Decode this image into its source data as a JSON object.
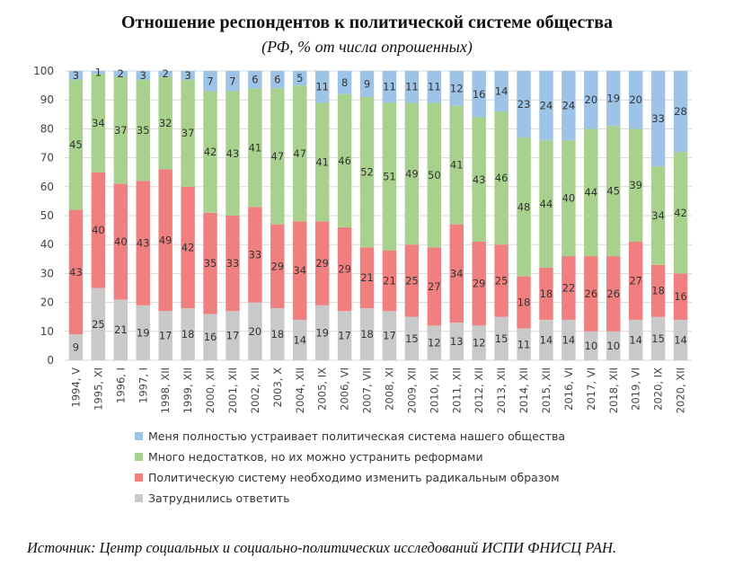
{
  "title": "Отношение респондентов к политической системе общества",
  "subtitle": "(РФ, % от числа опрошенных)",
  "source": "Источник: Центр социальных и социально-политических исследований ИСПИ ФНИСЦ РАН.",
  "colors": {
    "fully_satisfied": "#9dc3e6",
    "many_shortcomings": "#a9d18e",
    "radical_change": "#f08080",
    "hard_to_say": "#c9c9c9"
  },
  "chart_data": {
    "type": "bar",
    "stacked": true,
    "ylim": [
      0,
      100
    ],
    "yticks": [
      0,
      10,
      20,
      30,
      40,
      50,
      60,
      70,
      80,
      90,
      100
    ],
    "grid": true,
    "legend_position": "bottom",
    "categories": [
      "1994, V",
      "1995, XI",
      "1996, I",
      "1997, I",
      "1998, XII",
      "1999, XII",
      "2000, XII",
      "2001, XII",
      "2002, XII",
      "2003, X",
      "2004, XII",
      "2005, IX",
      "2006, VI",
      "2007, VII",
      "2008, XI",
      "2009, XII",
      "2010, XII",
      "2011, XII",
      "2012, XII",
      "2013, XII",
      "2014, XII",
      "2015, XII",
      "2016, VI",
      "2017, VI",
      "2018, XII",
      "2019, VI",
      "2020, IX",
      "2020, XII"
    ],
    "series": [
      {
        "name": "Затруднились ответить",
        "color_key": "hard_to_say",
        "values": [
          9,
          25,
          21,
          19,
          17,
          18,
          16,
          17,
          20,
          18,
          14,
          19,
          17,
          18,
          17,
          15,
          12,
          13,
          12,
          15,
          11,
          14,
          14,
          10,
          10,
          14,
          15,
          14
        ]
      },
      {
        "name": "Политическую систему необходимо изменить радикальным образом",
        "color_key": "radical_change",
        "values": [
          43,
          40,
          40,
          43,
          49,
          42,
          35,
          33,
          33,
          29,
          34,
          29,
          29,
          21,
          21,
          25,
          27,
          34,
          29,
          25,
          18,
          18,
          22,
          26,
          26,
          27,
          18,
          16
        ]
      },
      {
        "name": "Много недостатков, но их можно устранить реформами",
        "color_key": "many_shortcomings",
        "values": [
          45,
          34,
          37,
          35,
          32,
          37,
          42,
          43,
          41,
          47,
          47,
          41,
          46,
          52,
          51,
          49,
          50,
          41,
          43,
          46,
          48,
          44,
          40,
          44,
          45,
          39,
          34,
          42
        ]
      },
      {
        "name": "Меня полностью устраивает политическая система нашего общества",
        "color_key": "fully_satisfied",
        "values": [
          3,
          1,
          2,
          3,
          2,
          3,
          7,
          7,
          6,
          6,
          5,
          11,
          8,
          9,
          11,
          11,
          11,
          12,
          16,
          14,
          23,
          24,
          24,
          20,
          19,
          20,
          33,
          28
        ]
      }
    ],
    "legend_order": [
      3,
      2,
      1,
      0
    ]
  }
}
